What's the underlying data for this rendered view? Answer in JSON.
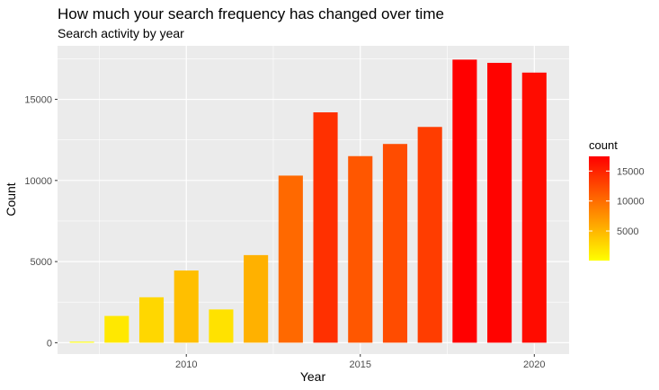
{
  "chart_data": {
    "type": "bar",
    "title": "How much your search frequency has changed over time",
    "subtitle": "Search activity by year",
    "xlabel": "Year",
    "ylabel": "Count",
    "x": [
      2007,
      2008,
      2009,
      2010,
      2011,
      2012,
      2013,
      2014,
      2015,
      2016,
      2017,
      2018,
      2019,
      2020
    ],
    "values": [
      60,
      1650,
      2800,
      4450,
      2050,
      5400,
      10300,
      14200,
      11500,
      12250,
      13300,
      17450,
      17250,
      16650
    ],
    "xlim": [
      2006.3,
      2021.0
    ],
    "ylim": [
      -700,
      18300
    ],
    "x_ticks": [
      2010,
      2015,
      2020
    ],
    "x_tick_labels": [
      "2010",
      "2015",
      "2020"
    ],
    "y_ticks": [
      0,
      5000,
      10000,
      15000
    ],
    "y_tick_labels": [
      "0",
      "5000",
      "10000",
      "15000"
    ],
    "grid": true,
    "fill_scale": {
      "low_color": "#FFFF00",
      "high_color": "#FF0000",
      "min": 60,
      "max": 17450
    },
    "legend": {
      "title": "count",
      "placement": "right",
      "breaks": [
        5000,
        10000,
        15000
      ],
      "labels": [
        "5000",
        "10000",
        "15000"
      ]
    },
    "panel_color": "#EBEBEB",
    "grid_color": "#FFFFFF"
  }
}
